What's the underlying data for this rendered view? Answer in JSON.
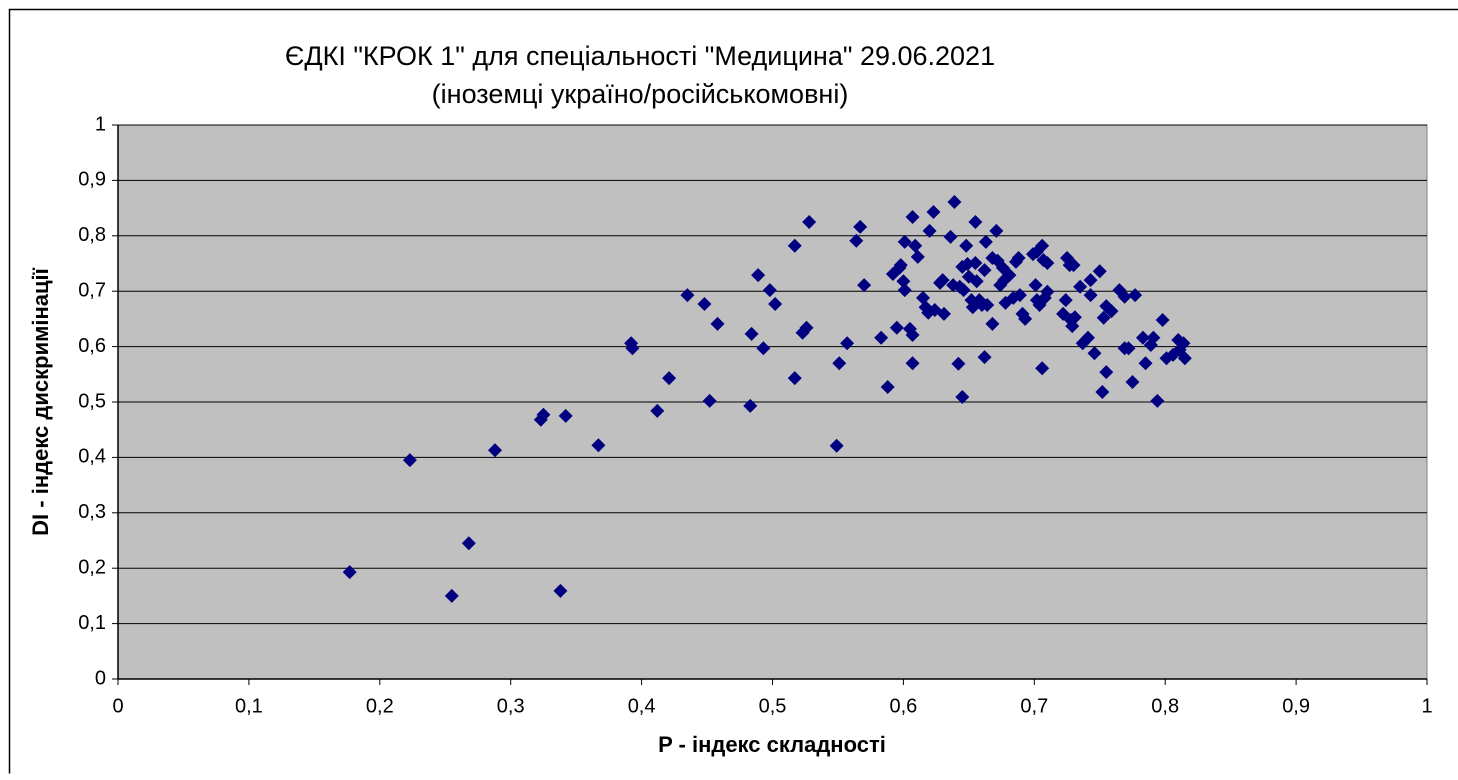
{
  "chart_data": {
    "type": "scatter",
    "title": "ЄДКІ \"КРОК 1\" для спеціальності \"Медицина\" 29.06.2021",
    "subtitle": "(іноземці україно/російськомовні)",
    "x_label": "P - індекс складності",
    "y_label": "DI - індекс дискримінації",
    "color": "#000080",
    "plot_background": "#c0c0c0",
    "grid": true,
    "xlim": [
      0,
      1
    ],
    "ylim": [
      0,
      1
    ],
    "xticks": [
      0,
      {
        "value": 0.1,
        "label": "0,1"
      },
      {
        "value": 0.2,
        "label": "0,2"
      },
      {
        "value": 0.3,
        "label": "0,3"
      },
      {
        "value": 0.4,
        "label": "0,4"
      },
      {
        "value": 0.5,
        "label": "0,5"
      },
      {
        "value": 0.6,
        "label": "0,6"
      },
      {
        "value": 0.7,
        "label": "0,7"
      },
      {
        "value": 0.8,
        "label": "0,8"
      },
      {
        "value": 0.9,
        "label": "0,9"
      },
      1
    ],
    "yticks": [
      0,
      {
        "value": 0.1,
        "label": "0,1"
      },
      {
        "value": 0.2,
        "label": "0,2"
      },
      {
        "value": 0.3,
        "label": "0,3"
      },
      {
        "value": 0.4,
        "label": "0,4"
      },
      {
        "value": 0.5,
        "label": "0,5"
      },
      {
        "value": 0.6,
        "label": "0,6"
      },
      {
        "value": 0.7,
        "label": "0,7"
      },
      {
        "value": 0.8,
        "label": "0,8"
      },
      {
        "value": 0.9,
        "label": "0,9"
      },
      1
    ],
    "x": [
      0.177,
      0.223,
      0.255,
      0.268,
      0.288,
      0.323,
      0.325,
      0.338,
      0.342,
      0.367,
      0.392,
      0.393,
      0.412,
      0.421,
      0.435,
      0.448,
      0.452,
      0.458,
      0.483,
      0.484,
      0.489,
      0.493,
      0.498,
      0.502,
      0.517,
      0.517,
      0.523,
      0.526,
      0.528,
      0.549,
      0.551,
      0.557,
      0.564,
      0.567,
      0.57,
      0.583,
      0.588,
      0.592,
      0.595,
      0.597,
      0.598,
      0.6,
      0.601,
      0.601,
      0.605,
      0.607,
      0.607,
      0.607,
      0.609,
      0.611,
      0.615,
      0.617,
      0.619,
      0.62,
      0.623,
      0.624,
      0.628,
      0.63,
      0.631,
      0.636,
      0.638,
      0.639,
      0.642,
      0.643,
      0.645,
      0.645,
      0.646,
      0.648,
      0.649,
      0.65,
      0.652,
      0.653,
      0.655,
      0.655,
      0.656,
      0.658,
      0.66,
      0.662,
      0.662,
      0.663,
      0.664,
      0.668,
      0.668,
      0.671,
      0.672,
      0.674,
      0.676,
      0.677,
      0.678,
      0.681,
      0.684,
      0.686,
      0.688,
      0.689,
      0.691,
      0.693,
      0.699,
      0.701,
      0.702,
      0.702,
      0.704,
      0.706,
      0.706,
      0.707,
      0.708,
      0.71,
      0.71,
      0.722,
      0.724,
      0.725,
      0.727,
      0.728,
      0.729,
      0.73,
      0.731,
      0.735,
      0.737,
      0.741,
      0.743,
      0.743,
      0.746,
      0.75,
      0.752,
      0.753,
      0.755,
      0.755,
      0.759,
      0.765,
      0.769,
      0.769,
      0.772,
      0.775,
      0.777,
      0.783,
      0.785,
      0.789,
      0.791,
      0.794,
      0.798,
      0.801,
      0.806,
      0.81,
      0.811,
      0.814,
      0.815
    ],
    "values": [
      0.193,
      0.395,
      0.15,
      0.245,
      0.413,
      0.468,
      0.477,
      0.159,
      0.475,
      0.422,
      0.606,
      0.597,
      0.484,
      0.543,
      0.693,
      0.677,
      0.502,
      0.641,
      0.493,
      0.623,
      0.729,
      0.597,
      0.702,
      0.677,
      0.782,
      0.543,
      0.625,
      0.634,
      0.825,
      0.421,
      0.57,
      0.606,
      0.791,
      0.816,
      0.711,
      0.616,
      0.527,
      0.731,
      0.634,
      0.742,
      0.747,
      0.718,
      0.702,
      0.789,
      0.632,
      0.621,
      0.57,
      0.834,
      0.782,
      0.762,
      0.688,
      0.671,
      0.661,
      0.809,
      0.843,
      0.666,
      0.715,
      0.72,
      0.659,
      0.798,
      0.711,
      0.861,
      0.569,
      0.708,
      0.509,
      0.744,
      0.702,
      0.782,
      0.749,
      0.726,
      0.684,
      0.671,
      0.825,
      0.751,
      0.718,
      0.684,
      0.675,
      0.738,
      0.581,
      0.789,
      0.675,
      0.641,
      0.76,
      0.809,
      0.755,
      0.711,
      0.742,
      0.72,
      0.679,
      0.729,
      0.688,
      0.753,
      0.76,
      0.693,
      0.659,
      0.65,
      0.767,
      0.711,
      0.771,
      0.684,
      0.675,
      0.782,
      0.561,
      0.756,
      0.688,
      0.751,
      0.699,
      0.659,
      0.684,
      0.76,
      0.747,
      0.648,
      0.637,
      0.747,
      0.653,
      0.708,
      0.606,
      0.616,
      0.72,
      0.693,
      0.588,
      0.736,
      0.518,
      0.652,
      0.554,
      0.673,
      0.664,
      0.702,
      0.69,
      0.597,
      0.597,
      0.536,
      0.693,
      0.616,
      0.57,
      0.603,
      0.616,
      0.502,
      0.648,
      0.579,
      0.585,
      0.612,
      0.594,
      0.606,
      0.579
    ]
  }
}
